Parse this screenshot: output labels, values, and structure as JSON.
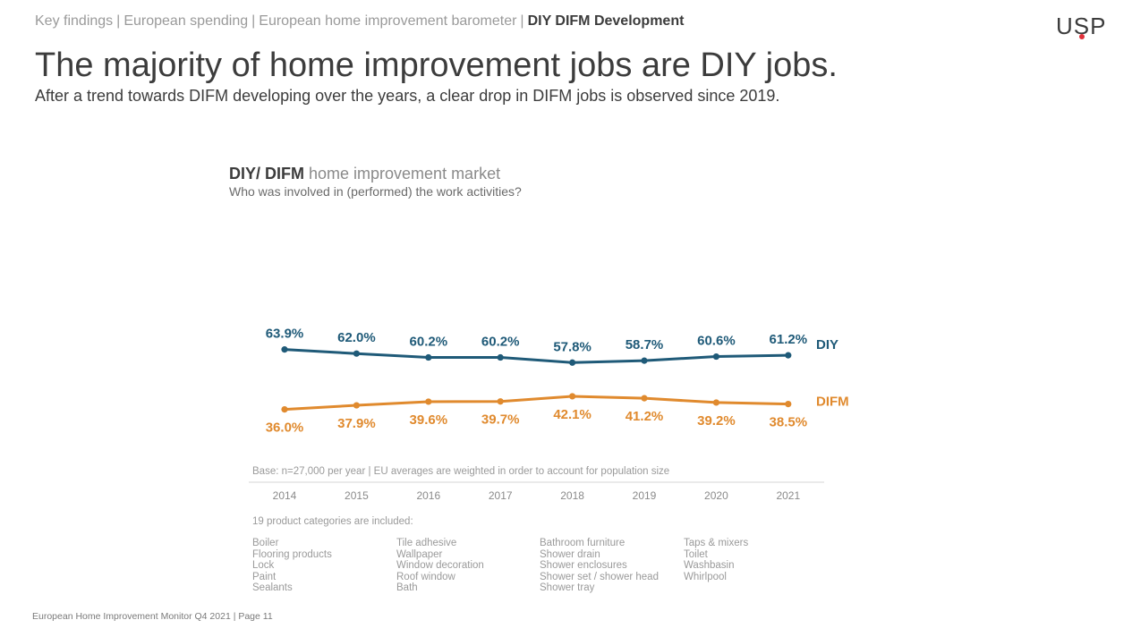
{
  "breadcrumb": {
    "items": [
      "Key findings",
      "European spending",
      "European home improvement barometer",
      "DIY DIFM Development"
    ],
    "separator": "|"
  },
  "logo": {
    "text_u": "U",
    "text_s": "S",
    "text_p": "P",
    "dot_color": "#e0303a"
  },
  "header": {
    "title": "The majority of home improvement jobs are DIY jobs.",
    "subtitle": "After a trend towards DIFM developing over the years, a clear drop in DIFM jobs is observed since 2019."
  },
  "chart_data": {
    "type": "line",
    "title_bold": "DIY/ DIFM",
    "title_rest": " home improvement market",
    "subtitle": "Who was involved in (performed) the work activities?",
    "x": [
      "2014",
      "2015",
      "2016",
      "2017",
      "2018",
      "2019",
      "2020",
      "2021"
    ],
    "series": [
      {
        "name": "DIY",
        "color": "#1f5a78",
        "values": [
          63.9,
          62.0,
          60.2,
          60.2,
          57.8,
          58.7,
          60.6,
          61.2
        ],
        "labels": [
          "63.9%",
          "62.0%",
          "60.2%",
          "60.2%",
          "57.8%",
          "58.7%",
          "60.6%",
          "61.2%"
        ]
      },
      {
        "name": "DIFM",
        "color": "#e08a2e",
        "values": [
          36.0,
          37.9,
          39.6,
          39.7,
          42.1,
          41.2,
          39.2,
          38.5
        ],
        "labels": [
          "36.0%",
          "37.9%",
          "39.6%",
          "39.7%",
          "42.1%",
          "41.2%",
          "39.2%",
          "38.5%"
        ]
      }
    ],
    "legend": "right",
    "grid": false
  },
  "base_note": "Base: n=27,000 per year | EU averages are weighted in order to account for population size",
  "categories": {
    "intro": "19 product categories are included:",
    "columns": [
      [
        "Boiler",
        "Flooring products",
        "Lock",
        "Paint",
        "Sealants"
      ],
      [
        "Tile adhesive",
        "Wallpaper",
        "Window decoration",
        "Roof window",
        "Bath"
      ],
      [
        "Bathroom furniture",
        "Shower drain",
        "Shower enclosures",
        "Shower set / shower head",
        "Shower tray"
      ],
      [
        "Taps & mixers",
        "Toilet",
        "Washbasin",
        "Whirlpool"
      ]
    ]
  },
  "footer": "European Home Improvement Monitor Q4 2021 | Page 11"
}
